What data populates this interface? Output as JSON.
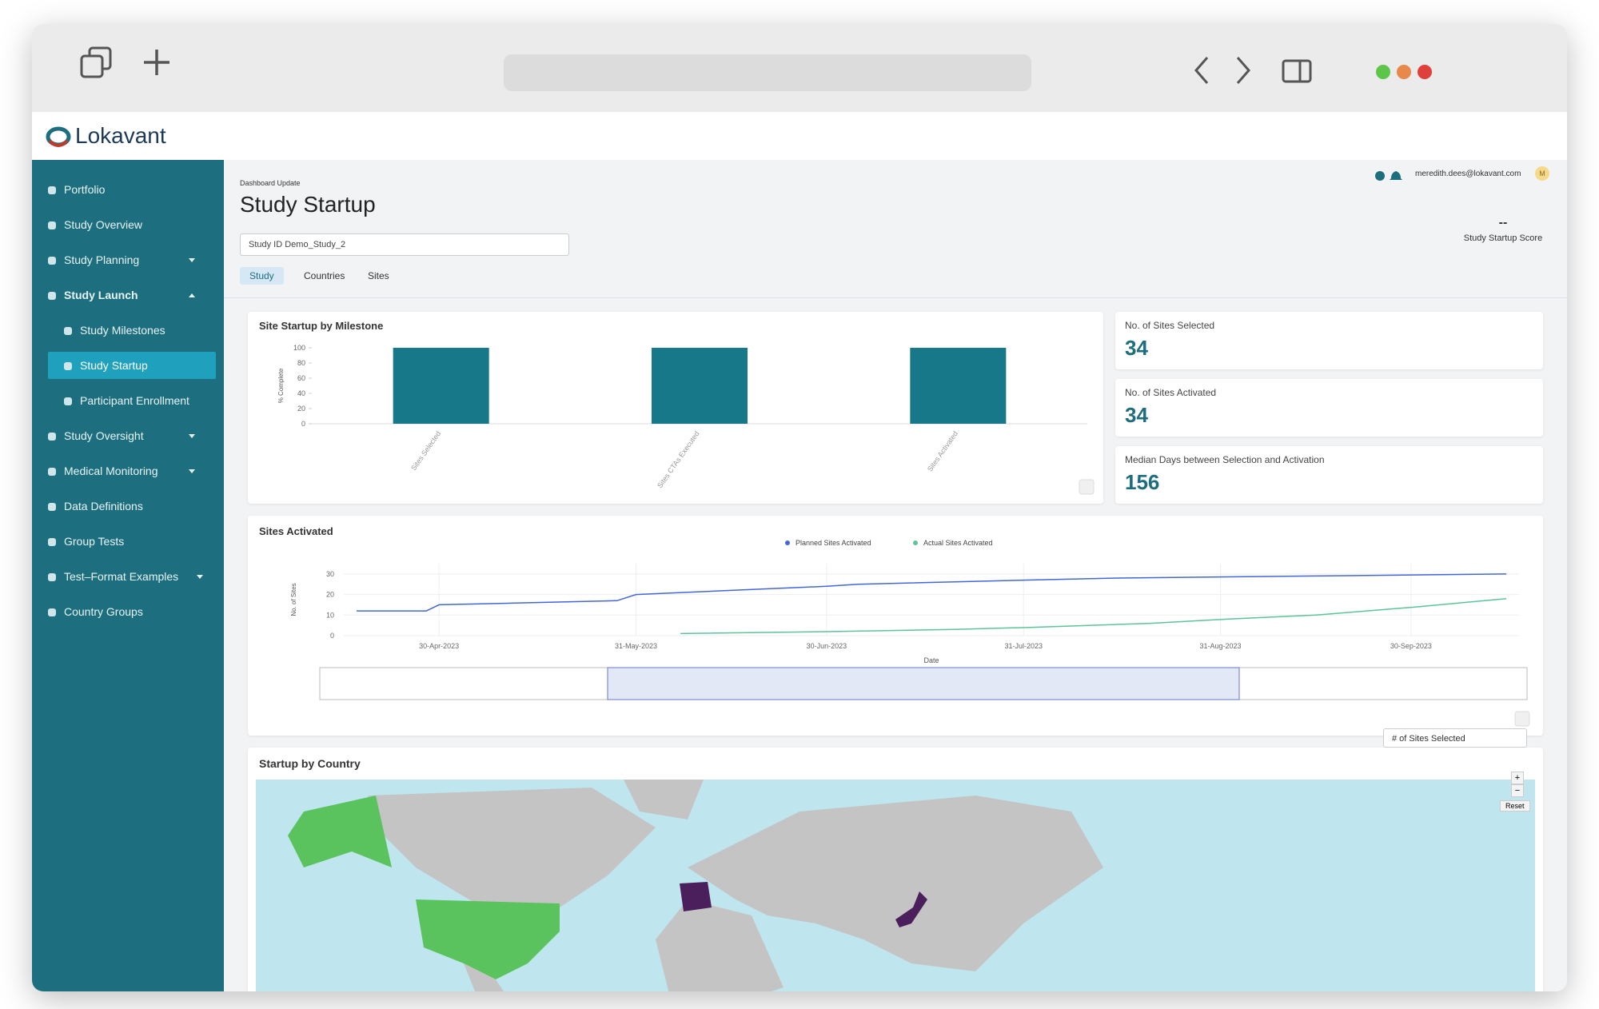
{
  "brand": "Lokavant",
  "nav": [
    "Portfolio",
    "Study Overview",
    "Study Planning",
    "Study Launch",
    "Study Milestones",
    "Study Startup",
    "Participant Enrollment",
    "Study Oversight",
    "Medical Monitoring",
    "Data Definitions",
    "Group Tests",
    "Test–Format Examples",
    "Country Groups"
  ],
  "header": {
    "update_label": "Dashboard Update",
    "title": "Study Startup",
    "study_select": "Study ID Demo_Study_2",
    "tabs": [
      "Study",
      "Countries",
      "Sites"
    ],
    "user_email": "meredith.dees@lokavant.com",
    "avatar": "M",
    "score": "--",
    "score_label": "Study Startup Score"
  },
  "kpis": [
    {
      "label": "No. of Sites Selected",
      "value": 34
    },
    {
      "label": "No. of Sites Activated",
      "value": 34
    },
    {
      "label": "Median Days between Selection and Activation",
      "value": 156
    }
  ],
  "milestone_chart": {
    "type": "bar",
    "title": "Site Startup by Milestone",
    "y_label": "% Complete",
    "categories": [
      "Sites Selected",
      "Sites CTAs Executed",
      "Sites Activated"
    ],
    "values": [
      100,
      100,
      100
    ],
    "color": "#17788a",
    "ylim": [
      0,
      100
    ],
    "yticks": [
      0,
      20,
      40,
      60,
      80,
      100
    ]
  },
  "activation_chart": {
    "type": "line",
    "title": "Sites Activated",
    "y_label": "No. of Sites",
    "x_label": "Date",
    "legend": "top",
    "grid": true,
    "series": [
      {
        "name": "Planned Sites Activated",
        "color": "#4466d8",
        "x": [
          "2023-04-17",
          "2023-04-28",
          "2023-04-30",
          "2023-05-14",
          "2023-05-28",
          "2023-05-31",
          "2023-06-15",
          "2023-06-30",
          "2023-07-05",
          "2023-07-31",
          "2023-08-15",
          "2023-09-15",
          "2023-10-15"
        ],
        "values": [
          12,
          12,
          15,
          16,
          17,
          20,
          22,
          24,
          25,
          27,
          28,
          29,
          30
        ]
      },
      {
        "name": "Actual Sites Activated",
        "color": "#5cc49a",
        "x": [
          "2023-06-07",
          "2023-07-01",
          "2023-07-20",
          "2023-08-01",
          "2023-08-20",
          "2023-09-01",
          "2023-09-15",
          "2023-10-01",
          "2023-10-15"
        ],
        "values": [
          1,
          2,
          3,
          4,
          6,
          8,
          10,
          14,
          18
        ]
      }
    ],
    "xlim": [
      "2023-04-15",
      "2023-10-17"
    ],
    "xticks": [
      {
        "value": "2023-04-30",
        "label": "30-Apr-2023"
      },
      {
        "value": "2023-05-31",
        "label": "31-May-2023"
      },
      {
        "value": "2023-06-30",
        "label": "30-Jun-2023"
      },
      {
        "value": "2023-07-31",
        "label": "31-Jul-2023"
      },
      {
        "value": "2023-08-31",
        "label": "31-Aug-2023"
      },
      {
        "value": "2023-09-30",
        "label": "30-Sep-2023"
      }
    ],
    "ylim": [
      0,
      35
    ],
    "yticks": [
      0,
      10,
      20,
      30
    ]
  },
  "map": {
    "title": "Startup by Country",
    "metric_select": "# of Sites Selected",
    "zoom_in": "+",
    "zoom_out": "−",
    "reset": "Reset"
  }
}
